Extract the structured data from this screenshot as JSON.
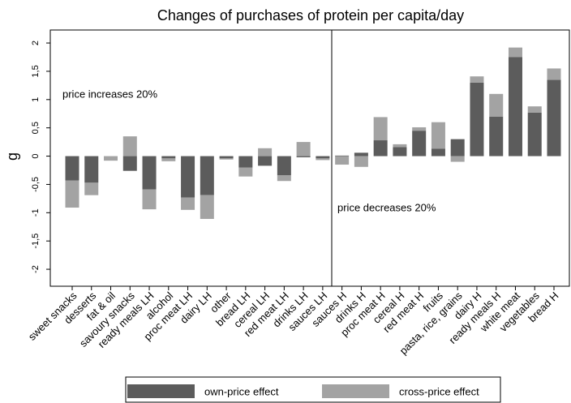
{
  "chart_data": {
    "type": "bar",
    "stacked": true,
    "title": "Changes of purchases of protein per capita/day",
    "y_label": "g",
    "annotations": [
      "price increases 20%",
      "price decreases 20%"
    ],
    "categories": [
      "sweet snacks",
      "desserts",
      "fat & oil",
      "savoury snacks",
      "ready meals LH",
      "alcohol",
      "proc meat LH",
      "dairy LH",
      "other",
      "bread LH",
      "cereal LH",
      "red meat LH",
      "drinks LH",
      "sauces LH",
      "sauces H",
      "drinks H",
      "proc meat H",
      "cereal H",
      "red meat H",
      "fruits",
      "pasta, rice, grains",
      "dairy H",
      "ready meals H",
      "white meat",
      "vegetables",
      "bread H"
    ],
    "series": [
      {
        "name": "own-price effect",
        "color": "#5c5c5c",
        "values": [
          -0.43,
          -0.47,
          0,
          -0.26,
          -0.59,
          -0.04,
          -0.73,
          -0.69,
          -0.04,
          -0.2,
          -0.17,
          -0.34,
          -0.02,
          -0.04,
          0.01,
          0.06,
          0.28,
          0.16,
          0.45,
          0.13,
          0.3,
          1.3,
          0.7,
          1.75,
          0.77,
          1.35
        ]
      },
      {
        "name": "cross-price effect",
        "color": "#a3a3a3",
        "values": [
          -0.48,
          -0.22,
          -0.08,
          0.35,
          -0.35,
          -0.05,
          -0.22,
          -0.42,
          -0.02,
          -0.16,
          0.14,
          -0.1,
          0.25,
          -0.03,
          -0.15,
          -0.19,
          0.41,
          0.05,
          0.06,
          0.47,
          -0.1,
          0.11,
          0.4,
          0.17,
          0.11,
          0.2
        ]
      }
    ],
    "ylim": [
      -2.3,
      2.23
    ],
    "yticks": [
      -2,
      {
        "value": -1.5,
        "label": "-1,5"
      },
      -1,
      {
        "value": -0.5,
        "label": "-0,5"
      },
      0,
      {
        "value": 0.5,
        "label": "0,5"
      },
      1,
      {
        "value": 1.5,
        "label": "1,5"
      },
      2
    ],
    "legend": "bottom"
  }
}
